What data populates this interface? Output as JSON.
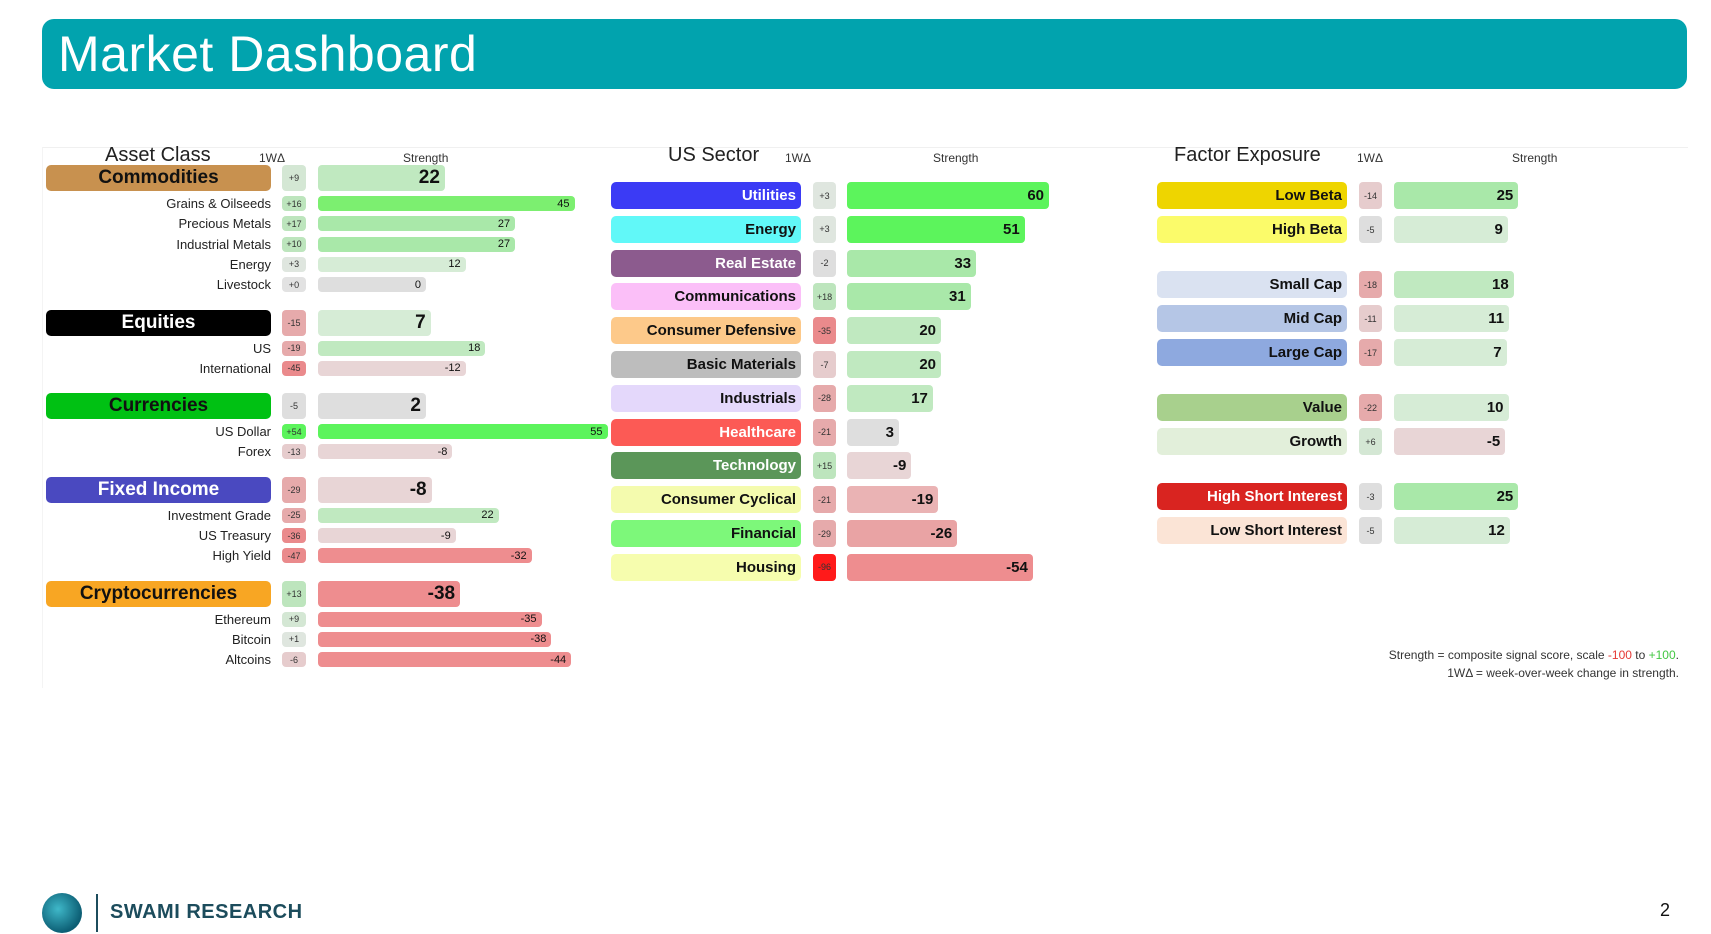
{
  "title": "Market Dashboard",
  "footer": {
    "brand": "SWAMI RESEARCH",
    "page": "2",
    "logo_icon": "swami-research-logo-icon"
  },
  "notes": {
    "line1_prefix": "Strength = composite signal score, scale ",
    "line1_min": "-100",
    "line1_to": " to ",
    "line1_max": "+100",
    "line1_suffix": ".",
    "line2": "1WΔ = week-over-week change in strength."
  },
  "colors": {
    "banner": "#01a3ae",
    "positive": "#43c743",
    "negative": "#e53935"
  },
  "asset_class": {
    "title": "Asset Class",
    "delta_header": "1WΔ",
    "strength_header": "Strength",
    "groups": [
      {
        "name": "Commodities",
        "color": "#c8914f",
        "text_color": "#111",
        "delta": "+9",
        "strength": 22,
        "items": [
          {
            "name": "Grains & Oilseeds",
            "delta": "+16",
            "strength": 45
          },
          {
            "name": "Precious Metals",
            "delta": "+17",
            "strength": 27
          },
          {
            "name": "Industrial Metals",
            "delta": "+10",
            "strength": 27
          },
          {
            "name": "Energy",
            "delta": "+3",
            "strength": 12
          },
          {
            "name": "Livestock",
            "delta": "+0",
            "strength": 0
          }
        ]
      },
      {
        "name": "Equities",
        "color": "#000000",
        "text_color": "#ffffff",
        "delta": "-15",
        "strength": 7,
        "items": [
          {
            "name": "US",
            "delta": "-19",
            "strength": 18
          },
          {
            "name": "International",
            "delta": "-45",
            "strength": -12
          }
        ]
      },
      {
        "name": "Currencies",
        "color": "#00c113",
        "text_color": "#111",
        "delta": "-5",
        "strength": 2,
        "items": [
          {
            "name": "US Dollar",
            "delta": "+54",
            "strength": 55
          },
          {
            "name": "Forex",
            "delta": "-13",
            "strength": -8
          }
        ]
      },
      {
        "name": "Fixed Income",
        "color": "#4a49c0",
        "text_color": "#ffffff",
        "delta": "-29",
        "strength": -8,
        "items": [
          {
            "name": "Investment Grade",
            "delta": "-25",
            "strength": 22
          },
          {
            "name": "US Treasury",
            "delta": "-36",
            "strength": -9
          },
          {
            "name": "High Yield",
            "delta": "-47",
            "strength": -32
          }
        ]
      },
      {
        "name": "Cryptocurrencies",
        "color": "#f8a623",
        "text_color": "#111",
        "delta": "+13",
        "strength": -38,
        "items": [
          {
            "name": "Ethereum",
            "delta": "+9",
            "strength": -35
          },
          {
            "name": "Bitcoin",
            "delta": "+1",
            "strength": -38
          },
          {
            "name": "Altcoins",
            "delta": "-6",
            "strength": -44
          }
        ]
      }
    ]
  },
  "us_sector": {
    "title": "US Sector",
    "delta_header": "1WΔ",
    "strength_header": "Strength",
    "rows": [
      {
        "name": "Utilities",
        "color": "#3b3bf5",
        "text_color": "#ffffff",
        "delta": "+3",
        "strength": 60
      },
      {
        "name": "Energy",
        "color": "#61f8f8",
        "text_color": "#111",
        "delta": "+3",
        "strength": 51
      },
      {
        "name": "Real Estate",
        "color": "#8c5b8e",
        "text_color": "#ffffff",
        "delta": "-2",
        "strength": 33
      },
      {
        "name": "Communications",
        "color": "#fbbff8",
        "text_color": "#111",
        "delta": "+18",
        "strength": 31
      },
      {
        "name": "Consumer Defensive",
        "color": "#fdc98a",
        "text_color": "#111",
        "delta": "-35",
        "strength": 20
      },
      {
        "name": "Basic Materials",
        "color": "#bdbdbd",
        "text_color": "#111",
        "delta": "-7",
        "strength": 20
      },
      {
        "name": "Industrials",
        "color": "#e4d8fb",
        "text_color": "#111",
        "delta": "-28",
        "strength": 17
      },
      {
        "name": "Healthcare",
        "color": "#fc5a55",
        "text_color": "#ffffff",
        "delta": "-21",
        "strength": 3
      },
      {
        "name": "Technology",
        "color": "#5b9659",
        "text_color": "#ffffff",
        "delta": "+15",
        "strength": -9
      },
      {
        "name": "Consumer Cyclical",
        "color": "#f4fbae",
        "text_color": "#111",
        "delta": "-21",
        "strength": -19
      },
      {
        "name": "Financial",
        "color": "#7df87a",
        "text_color": "#111",
        "delta": "-29",
        "strength": -26
      },
      {
        "name": "Housing",
        "color": "#f6fdae",
        "text_color": "#111",
        "delta": "-96",
        "strength": -54
      }
    ]
  },
  "factor_exposure": {
    "title": "Factor Exposure",
    "delta_header": "1WΔ",
    "strength_header": "Strength",
    "rows": [
      {
        "name": "Low Beta",
        "color": "#eed500",
        "text_color": "#111",
        "delta": "-14",
        "strength": 25
      },
      {
        "name": "High Beta",
        "color": "#fbfb6a",
        "text_color": "#111",
        "delta": "-5",
        "strength": 9
      },
      {
        "name": "Small Cap",
        "color": "#dae2f1",
        "text_color": "#111",
        "delta": "-18",
        "strength": 18
      },
      {
        "name": "Mid Cap",
        "color": "#b5c6e6",
        "text_color": "#111",
        "delta": "-11",
        "strength": 11
      },
      {
        "name": "Large Cap",
        "color": "#8ea9df",
        "text_color": "#111",
        "delta": "-17",
        "strength": 7
      },
      {
        "name": "Value",
        "color": "#a8d08d",
        "text_color": "#111",
        "delta": "-22",
        "strength": 10
      },
      {
        "name": "Growth",
        "color": "#e2efda",
        "text_color": "#111",
        "delta": "+6",
        "strength": -5
      },
      {
        "name": "High Short Interest",
        "color": "#d92420",
        "text_color": "#ffffff",
        "delta": "-3",
        "strength": 25
      },
      {
        "name": "Low Short Interest",
        "color": "#fbe4d6",
        "text_color": "#111",
        "delta": "-5",
        "strength": 12
      }
    ]
  }
}
